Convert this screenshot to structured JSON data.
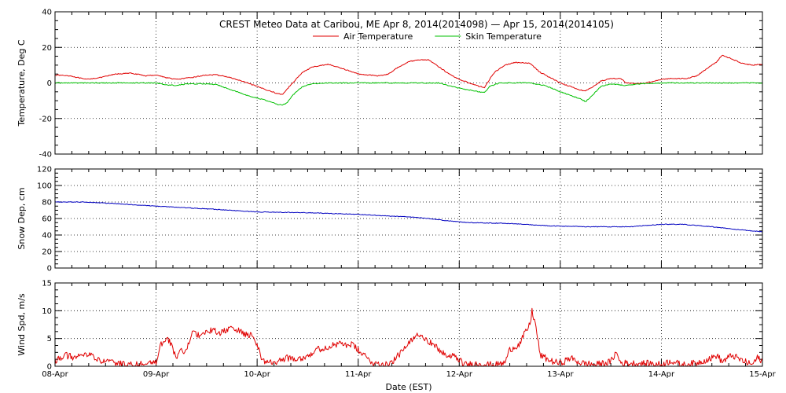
{
  "chart_data": {
    "title": "CREST Meteo Data at Caribou, ME   Apr  8, 2014(2014098) — Apr 15, 2014(2014105)",
    "xlabel": "Date (EST)",
    "x_ticks": [
      "08-Apr",
      "09-Apr",
      "10-Apr",
      "11-Apr",
      "12-Apr",
      "13-Apr",
      "14-Apr",
      "15-Apr"
    ],
    "x_range_days": [
      0,
      7
    ],
    "grid": true,
    "legend_placement": "top-center",
    "panels": [
      {
        "id": "temperature",
        "type": "line",
        "ylabel": "Temperature, Deg C",
        "ylim": [
          -40,
          40
        ],
        "y_ticks": [
          -40,
          -20,
          0,
          20,
          40
        ],
        "series": [
          {
            "name": "Air Temperature",
            "color": "#e00000",
            "points": [
              [
                0,
                4.5
              ],
              [
                0.15,
                4
              ],
              [
                0.3,
                2
              ],
              [
                0.45,
                3
              ],
              [
                0.6,
                5
              ],
              [
                0.75,
                5.5
              ],
              [
                0.9,
                4
              ],
              [
                1.0,
                4.5
              ],
              [
                1.1,
                3
              ],
              [
                1.2,
                2
              ],
              [
                1.35,
                3
              ],
              [
                1.5,
                4.5
              ],
              [
                1.6,
                4.5
              ],
              [
                1.7,
                3.5
              ],
              [
                1.85,
                1
              ],
              [
                2.0,
                -2
              ],
              [
                2.1,
                -4
              ],
              [
                2.2,
                -6
              ],
              [
                2.25,
                -6.5
              ],
              [
                2.35,
                0
              ],
              [
                2.45,
                6
              ],
              [
                2.55,
                9
              ],
              [
                2.7,
                10.5
              ],
              [
                2.85,
                8
              ],
              [
                3.0,
                5
              ],
              [
                3.1,
                4.5
              ],
              [
                3.2,
                4
              ],
              [
                3.3,
                5
              ],
              [
                3.4,
                9
              ],
              [
                3.5,
                12
              ],
              [
                3.6,
                13
              ],
              [
                3.7,
                13
              ],
              [
                3.8,
                9
              ],
              [
                3.9,
                5
              ],
              [
                4.0,
                2
              ],
              [
                4.1,
                0
              ],
              [
                4.2,
                -2
              ],
              [
                4.25,
                -2.5
              ],
              [
                4.3,
                2
              ],
              [
                4.35,
                6
              ],
              [
                4.45,
                10
              ],
              [
                4.55,
                11.5
              ],
              [
                4.7,
                11
              ],
              [
                4.8,
                6
              ],
              [
                4.9,
                3
              ],
              [
                5.0,
                0
              ],
              [
                5.1,
                -2
              ],
              [
                5.2,
                -4
              ],
              [
                5.25,
                -4.5
              ],
              [
                5.3,
                -3
              ],
              [
                5.4,
                1
              ],
              [
                5.5,
                2.5
              ],
              [
                5.6,
                2.5
              ],
              [
                5.65,
                0
              ],
              [
                5.75,
                -0.5
              ],
              [
                5.85,
                0
              ],
              [
                6.0,
                2
              ],
              [
                6.1,
                2.5
              ],
              [
                6.25,
                2.5
              ],
              [
                6.35,
                4
              ],
              [
                6.45,
                8
              ],
              [
                6.55,
                12
              ],
              [
                6.6,
                15.5
              ],
              [
                6.7,
                13.5
              ],
              [
                6.8,
                11
              ],
              [
                6.9,
                10
              ],
              [
                7.0,
                10.5
              ]
            ]
          },
          {
            "name": "Skin Temperature",
            "color": "#00c000",
            "points": [
              [
                0,
                0
              ],
              [
                0.5,
                0
              ],
              [
                1.0,
                0
              ],
              [
                1.1,
                -1
              ],
              [
                1.2,
                -1.5
              ],
              [
                1.3,
                -0.5
              ],
              [
                1.5,
                -0.5
              ],
              [
                1.6,
                -1
              ],
              [
                1.7,
                -3
              ],
              [
                1.8,
                -5
              ],
              [
                1.9,
                -7
              ],
              [
                2.0,
                -8.5
              ],
              [
                2.1,
                -10
              ],
              [
                2.2,
                -12
              ],
              [
                2.25,
                -12.5
              ],
              [
                2.3,
                -11
              ],
              [
                2.35,
                -7
              ],
              [
                2.45,
                -2
              ],
              [
                2.55,
                -0.5
              ],
              [
                2.7,
                0
              ],
              [
                3.0,
                0
              ],
              [
                3.5,
                0
              ],
              [
                3.8,
                0
              ],
              [
                3.9,
                -1.5
              ],
              [
                4.0,
                -3
              ],
              [
                4.1,
                -4
              ],
              [
                4.2,
                -5
              ],
              [
                4.25,
                -5.5
              ],
              [
                4.3,
                -2
              ],
              [
                4.4,
                0
              ],
              [
                4.7,
                0
              ],
              [
                4.85,
                -1.5
              ],
              [
                5.0,
                -5
              ],
              [
                5.1,
                -7
              ],
              [
                5.2,
                -9
              ],
              [
                5.25,
                -10.5
              ],
              [
                5.3,
                -8
              ],
              [
                5.4,
                -2
              ],
              [
                5.5,
                -0.5
              ],
              [
                5.65,
                -1.5
              ],
              [
                5.8,
                -0.5
              ],
              [
                6.0,
                0
              ],
              [
                6.5,
                0
              ],
              [
                7.0,
                0
              ]
            ]
          }
        ]
      },
      {
        "id": "snow",
        "type": "line",
        "ylabel": "Snow Dep, cm",
        "ylim": [
          0,
          120
        ],
        "y_ticks": [
          0,
          20,
          40,
          60,
          80,
          100,
          120
        ],
        "series": [
          {
            "name": "",
            "color": "#0000c0",
            "points": [
              [
                0,
                80
              ],
              [
                0.3,
                80
              ],
              [
                0.6,
                78
              ],
              [
                1.0,
                75
              ],
              [
                1.3,
                73
              ],
              [
                1.6,
                71
              ],
              [
                2.0,
                68
              ],
              [
                2.5,
                67
              ],
              [
                3.0,
                65
              ],
              [
                3.3,
                63
              ],
              [
                3.5,
                62
              ],
              [
                3.7,
                60
              ],
              [
                3.9,
                57
              ],
              [
                4.1,
                55
              ],
              [
                4.5,
                54
              ],
              [
                4.9,
                51
              ],
              [
                5.3,
                50
              ],
              [
                5.7,
                50
              ],
              [
                6.0,
                53
              ],
              [
                6.2,
                53
              ],
              [
                6.5,
                50
              ],
              [
                6.8,
                46
              ],
              [
                7.0,
                44
              ]
            ]
          }
        ]
      },
      {
        "id": "wind",
        "type": "line",
        "ylabel": "Wind Spd, m/s",
        "ylim": [
          0,
          15
        ],
        "y_ticks": [
          0,
          5,
          10,
          15
        ],
        "series": [
          {
            "name": "",
            "color": "#e00000",
            "points": [
              [
                0,
                1
              ],
              [
                0.1,
                2
              ],
              [
                0.2,
                1.5
              ],
              [
                0.3,
                2
              ],
              [
                0.35,
                2.5
              ],
              [
                0.4,
                1.2
              ],
              [
                0.5,
                0.8
              ],
              [
                0.6,
                0.6
              ],
              [
                0.7,
                0.3
              ],
              [
                0.8,
                0.2
              ],
              [
                0.85,
                0.6
              ],
              [
                0.9,
                0.2
              ],
              [
                1.0,
                0.8
              ],
              [
                1.05,
                4
              ],
              [
                1.1,
                5
              ],
              [
                1.15,
                4
              ],
              [
                1.2,
                1.5
              ],
              [
                1.25,
                3
              ],
              [
                1.3,
                2.5
              ],
              [
                1.35,
                6
              ],
              [
                1.45,
                5.5
              ],
              [
                1.55,
                6.5
              ],
              [
                1.65,
                6
              ],
              [
                1.75,
                7
              ],
              [
                1.85,
                6
              ],
              [
                1.95,
                5.5
              ],
              [
                2.0,
                4
              ],
              [
                2.05,
                1
              ],
              [
                2.15,
                0.6
              ],
              [
                2.3,
                1.5
              ],
              [
                2.45,
                1.5
              ],
              [
                2.6,
                3
              ],
              [
                2.8,
                4
              ],
              [
                2.95,
                3.8
              ],
              [
                3.05,
                2
              ],
              [
                3.15,
                0.6
              ],
              [
                3.25,
                0.3
              ],
              [
                3.35,
                1
              ],
              [
                3.45,
                3
              ],
              [
                3.55,
                5
              ],
              [
                3.6,
                6
              ],
              [
                3.7,
                4.5
              ],
              [
                3.8,
                3
              ],
              [
                3.9,
                1.5
              ],
              [
                3.95,
                2
              ],
              [
                4.05,
                0.3
              ],
              [
                4.2,
                0.5
              ],
              [
                4.35,
                0.2
              ],
              [
                4.45,
                0.6
              ],
              [
                4.5,
                3
              ],
              [
                4.6,
                4
              ],
              [
                4.65,
                6
              ],
              [
                4.7,
                7.5
              ],
              [
                4.72,
                10
              ],
              [
                4.76,
                7
              ],
              [
                4.8,
                2
              ],
              [
                4.9,
                1
              ],
              [
                5.0,
                0.5
              ],
              [
                5.1,
                1.5
              ],
              [
                5.2,
                0.6
              ],
              [
                5.35,
                0.3
              ],
              [
                5.5,
                0.8
              ],
              [
                5.55,
                2.5
              ],
              [
                5.6,
                0.6
              ],
              [
                5.75,
                0.5
              ],
              [
                5.9,
                0.5
              ],
              [
                6.0,
                0.3
              ],
              [
                6.1,
                1
              ],
              [
                6.2,
                0.2
              ],
              [
                6.35,
                0.6
              ],
              [
                6.5,
                1.5
              ],
              [
                6.55,
                2
              ],
              [
                6.6,
                0.8
              ],
              [
                6.7,
                2
              ],
              [
                6.8,
                1
              ],
              [
                6.9,
                0.3
              ],
              [
                6.95,
                1.5
              ],
              [
                7.0,
                1
              ]
            ]
          }
        ]
      }
    ]
  }
}
